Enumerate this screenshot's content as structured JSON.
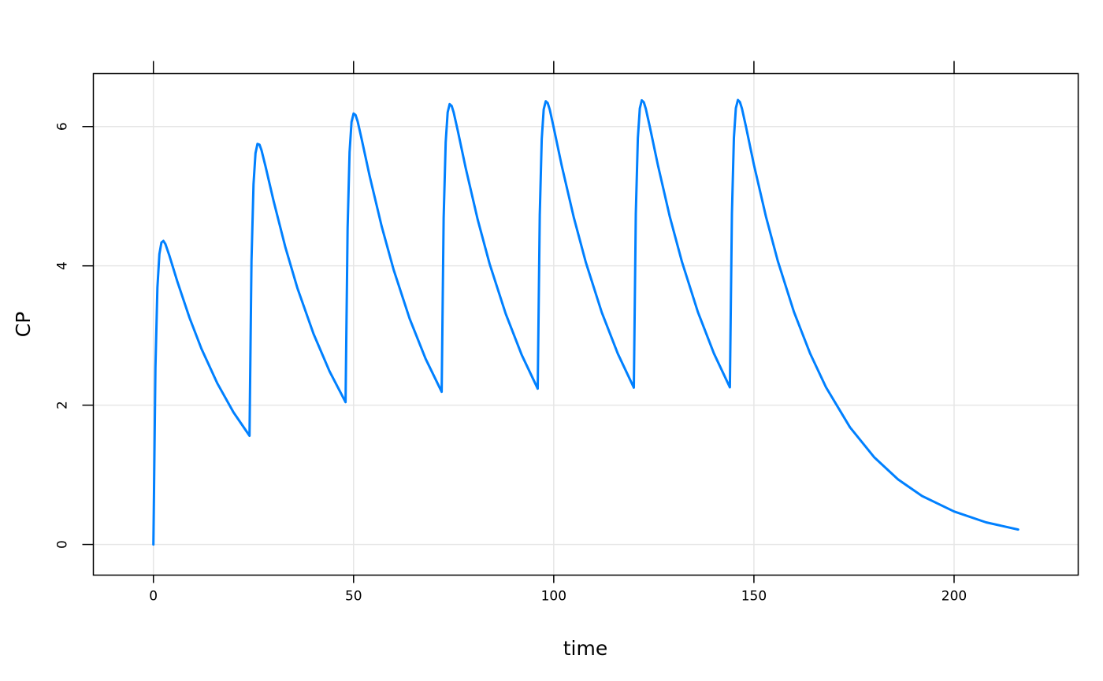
{
  "chart_data": {
    "type": "line",
    "title": "",
    "xlabel": "time",
    "ylabel": "CP",
    "xlim": [
      -15,
      231
    ],
    "ylim": [
      -0.44,
      6.76
    ],
    "x_ticks": [
      0,
      50,
      100,
      150,
      200
    ],
    "y_ticks": [
      0,
      2,
      4,
      6
    ],
    "grid": true,
    "line_color": "#0080ff",
    "grid_color": "#e6e6e6",
    "series": [
      {
        "x": [
          0,
          0.5,
          1,
          1.5,
          2,
          2.5,
          3,
          4,
          6,
          9,
          12,
          16,
          20,
          24,
          24.5,
          25,
          25.5,
          26,
          26.5,
          27,
          28,
          30,
          33,
          36,
          40,
          44,
          48,
          48.5,
          49,
          49.5,
          50,
          50.5,
          51,
          52,
          54,
          57,
          60,
          64,
          68,
          72,
          72.5,
          73,
          73.5,
          74,
          74.5,
          75,
          76,
          78,
          81,
          84,
          88,
          92,
          96,
          96.5,
          97,
          97.5,
          98,
          98.5,
          99,
          100,
          102,
          105,
          108,
          112,
          116,
          120,
          120.5,
          121,
          121.5,
          122,
          122.5,
          123,
          124,
          126,
          129,
          132,
          136,
          140,
          144,
          144.5,
          145,
          145.5,
          146,
          146.5,
          147,
          148,
          150,
          153,
          156,
          160,
          164,
          168,
          174,
          180,
          186,
          192,
          200,
          208,
          216
        ],
        "y": [
          0,
          2.547,
          3.689,
          4.168,
          4.335,
          4.358,
          4.312,
          4.147,
          3.771,
          3.256,
          2.81,
          2.31,
          1.899,
          1.561,
          4.07,
          5.176,
          5.618,
          5.751,
          5.739,
          5.66,
          5.43,
          4.935,
          4.26,
          3.677,
          3.023,
          2.485,
          2.043,
          4.54,
          5.634,
          6.066,
          6.187,
          6.165,
          6.076,
          5.826,
          5.294,
          4.57,
          3.945,
          3.243,
          2.666,
          2.191,
          4.686,
          5.776,
          6.204,
          6.322,
          6.297,
          6.204,
          5.948,
          5.405,
          4.666,
          4.027,
          3.311,
          2.721,
          2.237,
          4.73,
          5.82,
          6.247,
          6.363,
          6.337,
          6.244,
          5.985,
          5.438,
          4.695,
          4.053,
          3.332,
          2.738,
          2.251,
          4.744,
          5.833,
          6.26,
          6.377,
          6.349,
          6.256,
          5.997,
          5.449,
          4.704,
          4.061,
          3.338,
          2.744,
          2.256,
          4.748,
          5.837,
          6.264,
          6.381,
          6.353,
          6.26,
          6.001,
          5.452,
          4.707,
          4.063,
          3.34,
          2.746,
          2.257,
          1.682,
          1.254,
          0.934,
          0.696,
          0.473,
          0.317,
          0.215
        ]
      }
    ]
  }
}
